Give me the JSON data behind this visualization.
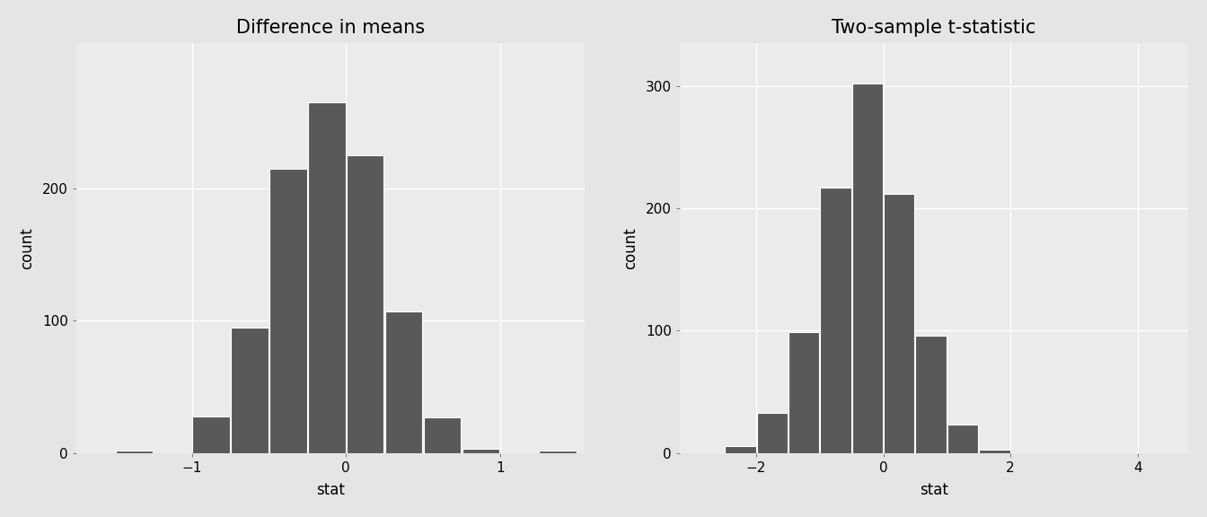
{
  "left": {
    "title": "Difference in means",
    "xlabel": "stat",
    "ylabel": "count",
    "bar_left_edges": [
      -1.5,
      -1.25,
      -1.0,
      -0.75,
      -0.5,
      -0.25,
      0.0,
      0.25,
      0.5,
      0.75,
      1.0,
      1.25
    ],
    "bar_heights": [
      2,
      0,
      28,
      95,
      215,
      265,
      225,
      107,
      27,
      3,
      0,
      2
    ],
    "bar_width": 0.25,
    "xlim": [
      -1.75,
      1.55
    ],
    "ylim": [
      0,
      310
    ],
    "xticks": [
      -1,
      0,
      1
    ],
    "yticks": [
      0,
      100,
      200
    ]
  },
  "right": {
    "title": "Two-sample t-statistic",
    "xlabel": "stat",
    "ylabel": "count",
    "bar_left_edges": [
      -3.0,
      -2.5,
      -2.0,
      -1.5,
      -1.0,
      -0.5,
      0.0,
      0.5,
      1.0,
      1.5,
      2.0,
      2.5,
      3.0,
      3.5
    ],
    "bar_heights": [
      0,
      6,
      33,
      99,
      217,
      302,
      212,
      96,
      23,
      3,
      0,
      0,
      0,
      0
    ],
    "bar_width": 0.5,
    "xlim": [
      -3.2,
      4.8
    ],
    "ylim": [
      0,
      335
    ],
    "xticks": [
      -2,
      0,
      2,
      4
    ],
    "yticks": [
      0,
      100,
      200,
      300
    ]
  },
  "bar_color": "#595959",
  "bar_edgecolor": "#ffffff",
  "outer_background": "#e5e5e5",
  "panel_background": "#ebebeb",
  "grid_color": "#ffffff",
  "title_fontsize": 15,
  "axis_label_fontsize": 12,
  "tick_fontsize": 11
}
